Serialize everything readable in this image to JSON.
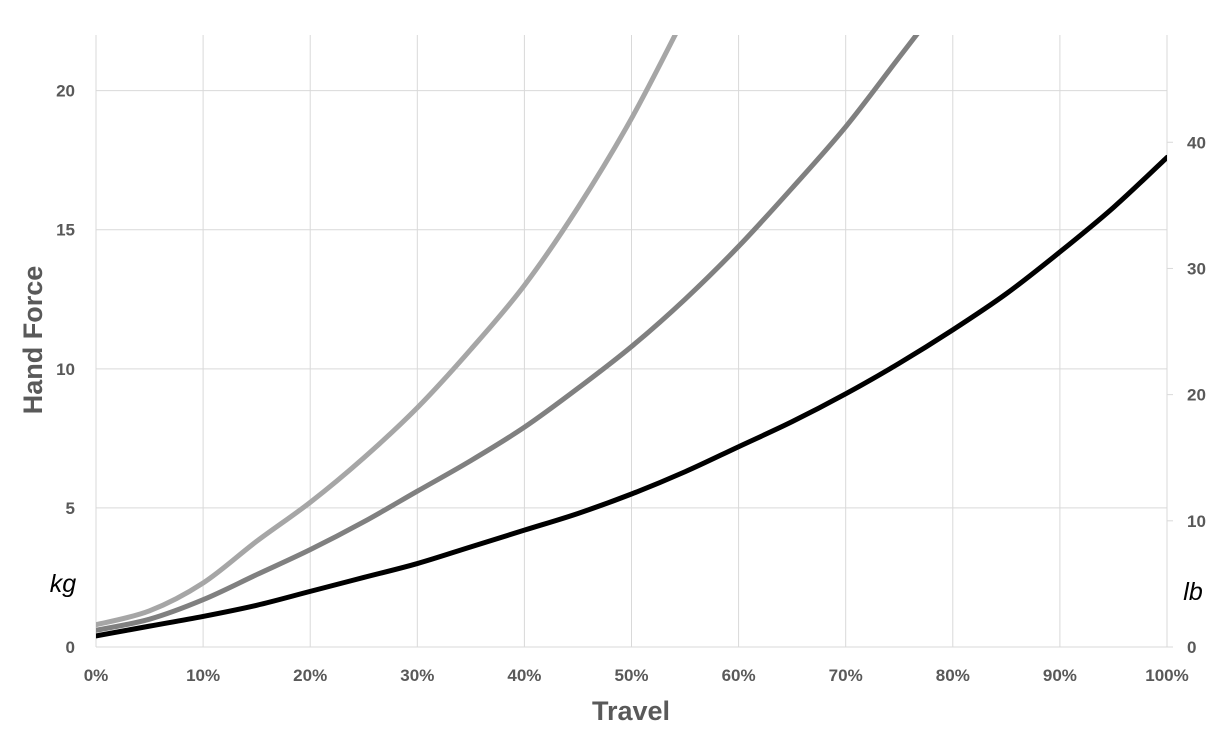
{
  "chart_data": {
    "type": "line",
    "xlabel": "Travel",
    "ylabel": "Hand Force",
    "y_unit": "kg",
    "y2_unit": "lb",
    "x_ticks": [
      "0%",
      "10%",
      "20%",
      "30%",
      "40%",
      "50%",
      "60%",
      "70%",
      "80%",
      "90%",
      "100%"
    ],
    "y_ticks": [
      "0",
      "5",
      "10",
      "15",
      "20"
    ],
    "y2_ticks": [
      "0",
      "10",
      "20",
      "30",
      "40"
    ],
    "xlim": [
      0,
      100
    ],
    "ylim": [
      0,
      22
    ],
    "y2lim": [
      0,
      48.5
    ],
    "grid": true,
    "x": [
      0,
      5,
      10,
      15,
      20,
      25,
      30,
      35,
      40,
      45,
      50,
      55,
      60,
      65,
      70,
      75,
      80,
      85,
      90,
      95,
      100
    ],
    "series": [
      {
        "color": "#a6a6a6",
        "values": [
          0.8,
          1.3,
          2.3,
          3.8,
          5.2,
          6.8,
          8.6,
          10.7,
          13.0,
          15.8,
          19.0,
          22.7,
          null,
          null,
          null,
          null,
          null,
          null,
          null,
          null,
          null
        ]
      },
      {
        "color": "#808080",
        "values": [
          0.6,
          1.0,
          1.7,
          2.6,
          3.5,
          4.5,
          5.6,
          6.7,
          7.9,
          9.3,
          10.8,
          12.5,
          14.4,
          16.5,
          18.7,
          21.2,
          23.7,
          null,
          null,
          null,
          null
        ]
      },
      {
        "color": "#000000",
        "values": [
          0.4,
          0.75,
          1.1,
          1.5,
          2.0,
          2.5,
          3.0,
          3.6,
          4.2,
          4.8,
          5.5,
          6.3,
          7.2,
          8.1,
          9.1,
          10.2,
          11.4,
          12.7,
          14.2,
          15.8,
          17.6
        ]
      }
    ]
  }
}
